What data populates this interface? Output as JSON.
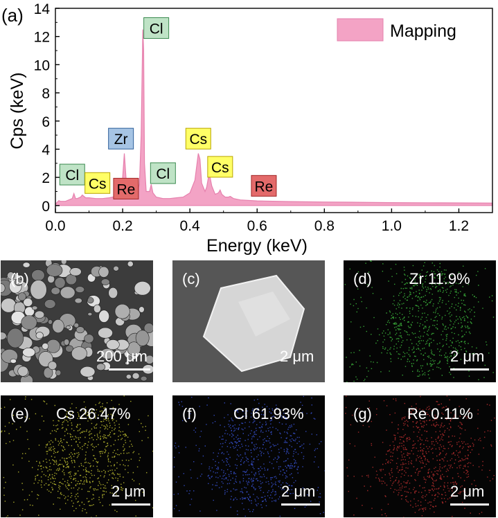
{
  "chart_data": {
    "type": "area",
    "panel_label": "(a)",
    "xlabel": "Energy (keV)",
    "ylabel": "Cps (keV)",
    "xlim": [
      0,
      1.3
    ],
    "ylim": [
      -0.5,
      14
    ],
    "x_ticks": [
      "0.0",
      "0.2",
      "0.4",
      "0.6",
      "0.8",
      "1.0",
      "1.2"
    ],
    "y_ticks": [
      "0",
      "2",
      "4",
      "6",
      "8",
      "10",
      "12",
      "14"
    ],
    "legend": {
      "label": "Mapping",
      "position": "top-right"
    },
    "series": [
      {
        "name": "Mapping",
        "color": "#e680ad",
        "x": [
          0.0,
          0.01,
          0.015,
          0.02,
          0.03,
          0.04,
          0.05,
          0.055,
          0.06,
          0.065,
          0.075,
          0.08,
          0.09,
          0.1,
          0.12,
          0.14,
          0.16,
          0.18,
          0.19,
          0.2,
          0.205,
          0.21,
          0.215,
          0.22,
          0.23,
          0.24,
          0.25,
          0.255,
          0.26,
          0.2625,
          0.265,
          0.27,
          0.28,
          0.285,
          0.29,
          0.3,
          0.32,
          0.34,
          0.36,
          0.38,
          0.4,
          0.415,
          0.425,
          0.43,
          0.435,
          0.445,
          0.45,
          0.455,
          0.46,
          0.465,
          0.475,
          0.485,
          0.49,
          0.495,
          0.505,
          0.515,
          0.52,
          0.53,
          0.54,
          0.55,
          0.6,
          0.7,
          0.8,
          0.9,
          1.0,
          1.1,
          1.2,
          1.3
        ],
        "y": [
          0.1,
          0.35,
          0.3,
          0.3,
          0.3,
          0.4,
          0.5,
          0.85,
          0.5,
          0.5,
          0.6,
          0.75,
          0.55,
          0.55,
          0.5,
          0.5,
          0.55,
          0.65,
          1.0,
          2.0,
          3.7,
          2.0,
          1.0,
          0.7,
          0.7,
          0.8,
          1.5,
          5.0,
          12.5,
          11.0,
          3.0,
          1.0,
          1.0,
          1.5,
          0.9,
          0.6,
          0.5,
          0.5,
          0.55,
          0.6,
          0.9,
          1.8,
          3.7,
          3.3,
          1.6,
          1.0,
          1.3,
          2.0,
          2.0,
          1.4,
          0.8,
          0.9,
          1.1,
          0.8,
          0.6,
          0.6,
          0.65,
          0.5,
          0.45,
          0.4,
          0.33,
          0.28,
          0.25,
          0.23,
          0.21,
          0.2,
          0.19,
          0.18
        ]
      }
    ],
    "annotations": [
      {
        "text": "Cl",
        "x": 0.05,
        "y": 2.2,
        "bg": "#bfe3c6",
        "border": "#3a8a4f"
      },
      {
        "text": "Cs",
        "x": 0.125,
        "y": 1.6,
        "bg": "#ffff66",
        "border": "#b8a400"
      },
      {
        "text": "Zr",
        "x": 0.195,
        "y": 4.75,
        "bg": "#a6c4e4",
        "border": "#2d5f9a"
      },
      {
        "text": "Re",
        "x": 0.21,
        "y": 1.2,
        "bg": "#e36a6a",
        "border": "#a02525"
      },
      {
        "text": "Cl",
        "x": 0.3,
        "y": 12.6,
        "bg": "#bfe3c6",
        "border": "#3a8a4f"
      },
      {
        "text": "Cl",
        "x": 0.32,
        "y": 2.3,
        "bg": "#bfe3c6",
        "border": "#3a8a4f"
      },
      {
        "text": "Cs",
        "x": 0.425,
        "y": 4.75,
        "bg": "#ffff66",
        "border": "#b8a400"
      },
      {
        "text": "Cs",
        "x": 0.49,
        "y": 2.75,
        "bg": "#ffff66",
        "border": "#b8a400"
      },
      {
        "text": "Re",
        "x": 0.62,
        "y": 1.4,
        "bg": "#e36a6a",
        "border": "#a02525"
      }
    ]
  },
  "micrographs": [
    {
      "label": "(b)",
      "scale_text": "200 μm",
      "type": "sem-particles"
    },
    {
      "label": "(c)",
      "scale_text": "2 μm",
      "type": "sem-single"
    },
    {
      "label": "(d)",
      "element_text": "Zr 11.9%",
      "scale_text": "2 μm",
      "color": "#3fbf3f",
      "type": "eds-map"
    },
    {
      "label": "(e)",
      "element_text": "Cs 26.47%",
      "scale_text": "2 μm",
      "color": "#c8c832",
      "type": "eds-map"
    },
    {
      "label": "(f)",
      "element_text": "Cl 61.93%",
      "scale_text": "2 μm",
      "color": "#3a55d9",
      "type": "eds-map"
    },
    {
      "label": "(g)",
      "element_text": "Re 0.11%",
      "scale_text": "2 μm",
      "color": "#c03030",
      "type": "eds-map"
    }
  ]
}
